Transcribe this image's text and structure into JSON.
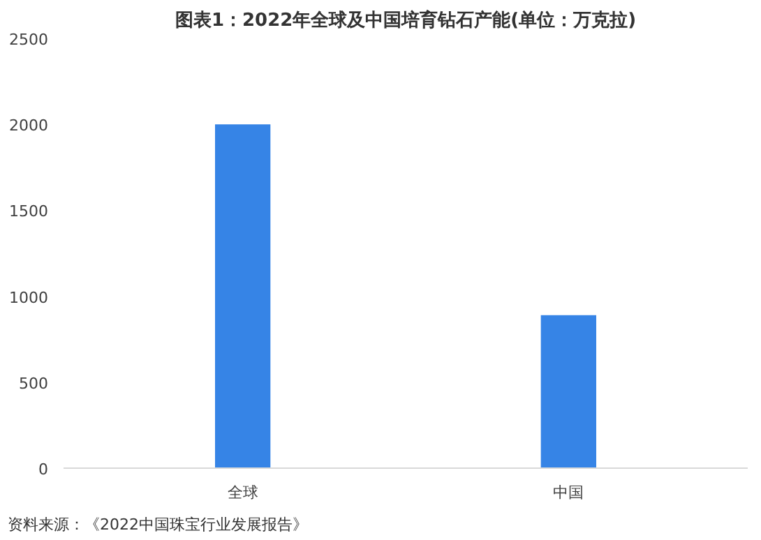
{
  "chart_data": {
    "type": "bar",
    "title": "图表1：2022年全球及中国培育钻石产能(单位：万克拉)",
    "categories": [
      "全球",
      "中国"
    ],
    "values": [
      2000,
      890
    ],
    "color": "#3684e6",
    "ylim": [
      0,
      2500
    ],
    "yticks": [
      0,
      500,
      1000,
      1500,
      2000,
      2500
    ],
    "grid": false,
    "annotations": [
      "资料来源：《2022中国珠宝行业发展报告》"
    ]
  }
}
